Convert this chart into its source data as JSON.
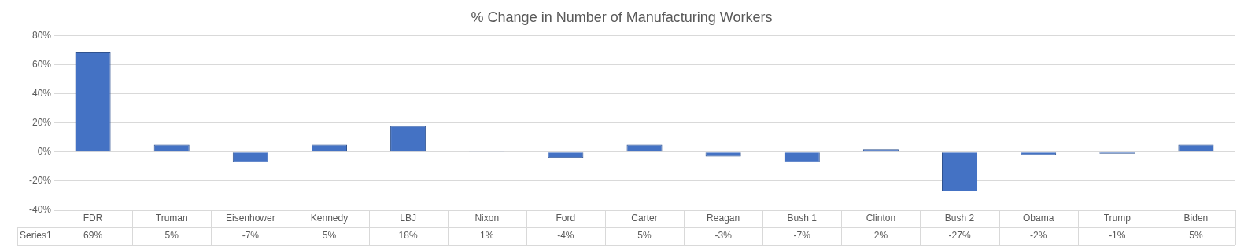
{
  "chart_data": {
    "type": "bar",
    "title": "% Change in Number of Manufacturing Workers",
    "categories": [
      "FDR",
      "Truman",
      "Eisenhower",
      "Kennedy",
      "LBJ",
      "Nixon",
      "Ford",
      "Carter",
      "Reagan",
      "Bush 1",
      "Clinton",
      "Bush 2",
      "Obama",
      "Trump",
      "Biden"
    ],
    "series": [
      {
        "name": "Series1",
        "color": "#4472c4",
        "values": [
          69,
          5,
          -7,
          5,
          18,
          1,
          -4,
          5,
          -3,
          -7,
          2,
          -27,
          -2,
          -1,
          5
        ],
        "value_labels": [
          "69%",
          "5%",
          "-7%",
          "5%",
          "18%",
          "1%",
          "-4%",
          "5%",
          "-3%",
          "-7%",
          "2%",
          "-27%",
          "-2%",
          "-1%",
          "5%"
        ]
      }
    ],
    "ylim": [
      -40,
      80
    ],
    "yticks": [
      {
        "value": -40,
        "label": "-40%"
      },
      {
        "value": -20,
        "label": "-20%"
      },
      {
        "value": 0,
        "label": "0%"
      },
      {
        "value": 20,
        "label": "20%"
      },
      {
        "value": 40,
        "label": "40%"
      },
      {
        "value": 60,
        "label": "60%"
      },
      {
        "value": 80,
        "label": "80%"
      }
    ],
    "grid": "y",
    "legend": false
  }
}
